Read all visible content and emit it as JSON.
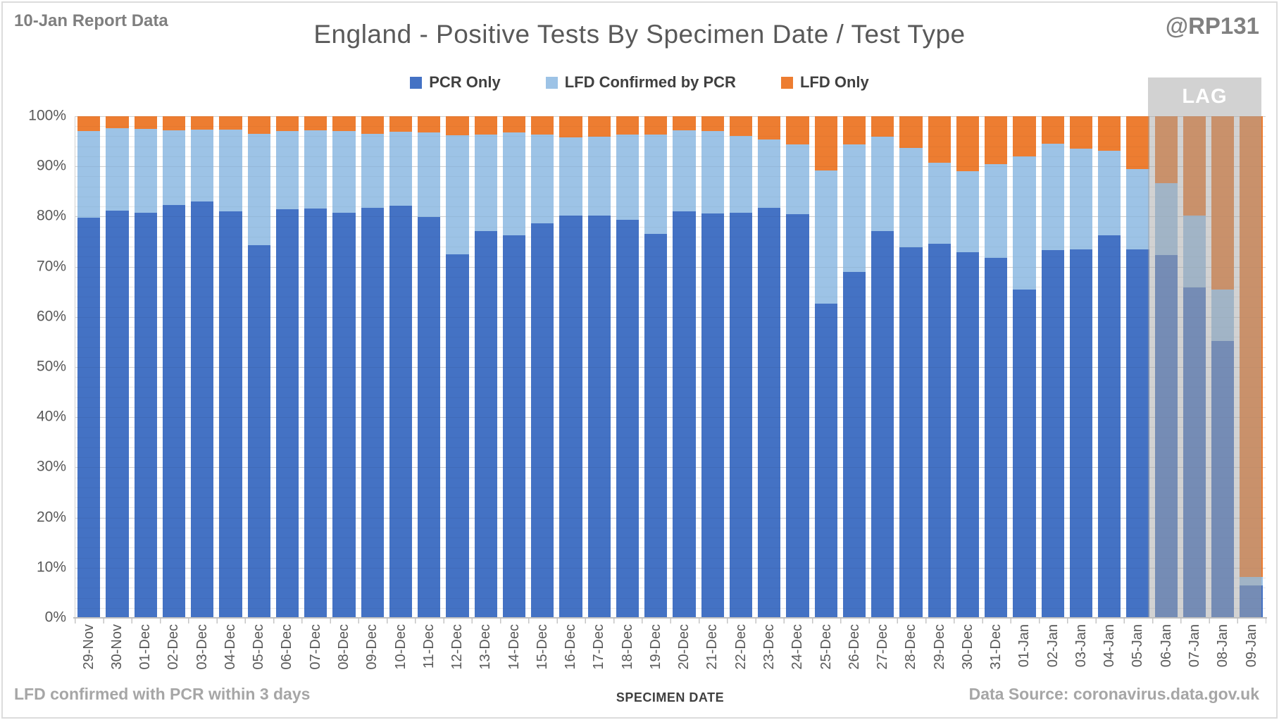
{
  "header": {
    "report_label": "10-Jan Report Data",
    "title": "England - Positive Tests By Specimen Date / Test Type",
    "handle": "@RP131"
  },
  "legend": [
    {
      "label": "PCR Only",
      "color": "#4472C4"
    },
    {
      "label": "LFD Confirmed by PCR",
      "color": "#9DC3E6"
    },
    {
      "label": "LFD Only",
      "color": "#ED7D31"
    }
  ],
  "lag": {
    "label": "LAG",
    "categories": [
      "06-Jan",
      "07-Jan",
      "08-Jan",
      "09-Jan"
    ],
    "header_color": "#D2D2D2",
    "overlay_color": "rgba(165,165,165,0.5)"
  },
  "footer": {
    "note": "LFD confirmed with PCR within 3 days",
    "xlabel": "SPECIMEN DATE",
    "source": "Data Source: coronavirus.data.gov.uk"
  },
  "chart_data": {
    "type": "bar",
    "stacked": true,
    "units": "percent",
    "ylim": [
      0,
      100
    ],
    "y_tick_step": 10,
    "y_minor_step": 2,
    "grid": true,
    "legend_position": "top",
    "title": "England - Positive Tests By Specimen Date / Test Type",
    "xlabel": "SPECIMEN DATE",
    "categories": [
      "29-Nov",
      "30-Nov",
      "01-Dec",
      "02-Dec",
      "03-Dec",
      "04-Dec",
      "05-Dec",
      "06-Dec",
      "07-Dec",
      "08-Dec",
      "09-Dec",
      "10-Dec",
      "11-Dec",
      "12-Dec",
      "13-Dec",
      "14-Dec",
      "15-Dec",
      "16-Dec",
      "17-Dec",
      "18-Dec",
      "19-Dec",
      "20-Dec",
      "21-Dec",
      "22-Dec",
      "23-Dec",
      "24-Dec",
      "25-Dec",
      "26-Dec",
      "27-Dec",
      "28-Dec",
      "29-Dec",
      "30-Dec",
      "31-Dec",
      "01-Jan",
      "02-Jan",
      "03-Jan",
      "04-Jan",
      "05-Jan",
      "06-Jan",
      "07-Jan",
      "08-Jan",
      "09-Jan"
    ],
    "series": [
      {
        "name": "PCR Only",
        "color": "#4472C4",
        "values": [
          79.8,
          81.2,
          80.8,
          82.3,
          83.0,
          81.0,
          74.3,
          81.5,
          81.6,
          80.8,
          81.8,
          82.2,
          79.9,
          72.5,
          77.1,
          76.2,
          78.7,
          80.2,
          80.2,
          79.3,
          76.5,
          81.0,
          80.6,
          80.8,
          81.8,
          80.5,
          62.7,
          68.9,
          77.1,
          73.9,
          74.6,
          72.9,
          71.8,
          65.4,
          73.3,
          73.5,
          76.3,
          73.5,
          72.4,
          65.9,
          55.2,
          6.4
        ]
      },
      {
        "name": "LFD Confirmed by PCR",
        "color": "#9DC3E6",
        "values": [
          17.2,
          16.4,
          16.7,
          14.9,
          14.3,
          16.3,
          22.2,
          15.6,
          15.6,
          16.3,
          14.7,
          14.7,
          16.9,
          23.7,
          19.3,
          20.6,
          17.7,
          15.6,
          15.7,
          17.0,
          19.9,
          16.2,
          16.4,
          15.3,
          13.5,
          13.9,
          26.5,
          25.5,
          18.8,
          19.8,
          16.1,
          16.2,
          18.6,
          26.6,
          21.2,
          20.1,
          16.8,
          16.0,
          14.3,
          14.3,
          10.3,
          1.7
        ]
      },
      {
        "name": "LFD Only",
        "color": "#ED7D31",
        "values": [
          3.0,
          2.4,
          2.5,
          2.8,
          2.7,
          2.7,
          3.5,
          2.9,
          2.8,
          2.9,
          3.5,
          3.1,
          3.2,
          3.8,
          3.6,
          3.2,
          3.6,
          4.2,
          4.1,
          3.7,
          3.6,
          2.8,
          3.0,
          3.9,
          4.7,
          5.6,
          10.8,
          5.6,
          4.1,
          6.3,
          9.3,
          10.9,
          9.6,
          8.0,
          5.5,
          6.4,
          6.9,
          10.5,
          13.3,
          19.8,
          34.5,
          91.9
        ]
      }
    ],
    "annotations": [
      {
        "text": "LAG",
        "over_categories": [
          "06-Jan",
          "07-Jan",
          "08-Jan",
          "09-Jan"
        ]
      }
    ]
  }
}
